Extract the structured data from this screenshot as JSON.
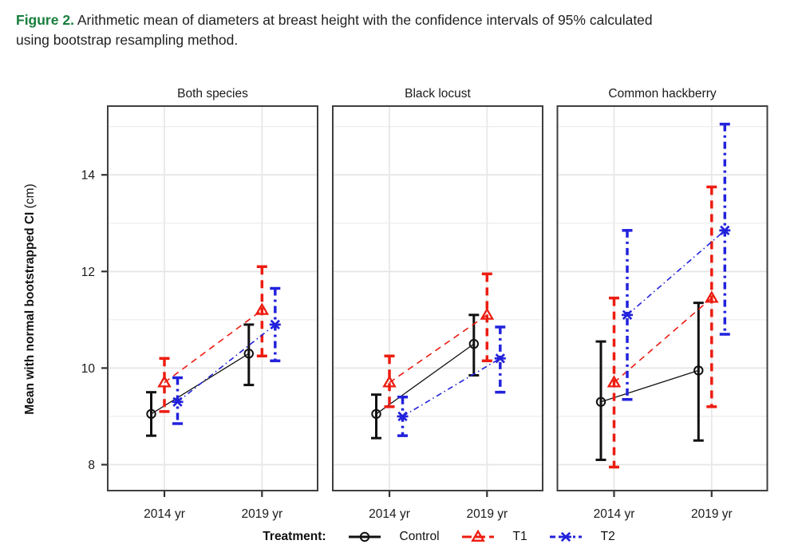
{
  "caption": {
    "label": "Figure 2.",
    "label_color": "#177e3c",
    "line1": "Arithmetic mean of diameters at breast height with the confidence intervals of 95% calculated",
    "line2": "using bootstrap resampling method."
  },
  "chart_data": {
    "type": "line",
    "description": "Dot-and-error-bar plot, three facet panels, means with 95% bootstrap CI",
    "panels": [
      "Both species",
      "Black locust",
      "Common hackberry"
    ],
    "x_categories": [
      "2014 yr",
      "2019 yr"
    ],
    "ylabel_bold": "Mean with normal bootstrapped CI",
    "ylabel_unit": "(cm)",
    "yticks": [
      8,
      10,
      12,
      14
    ],
    "ygrid_lines": [
      8,
      9,
      10,
      11,
      12,
      13,
      14,
      15
    ],
    "ylim": [
      7.45,
      15.45
    ],
    "grid": "on",
    "legend_title": "Treatment:",
    "legend_position": "bottom",
    "colors": {
      "control": "#111111",
      "t1": "#ed1c11",
      "t2": "#2222dd",
      "grid": "#e8e8e8",
      "panel_border": "#3f3f3f"
    },
    "series": [
      {
        "name": "Control",
        "color": "#111111",
        "marker": "circle",
        "linestyle": "solid",
        "panels": [
          {
            "panel": "Both species",
            "points": [
              {
                "x": "2014 yr",
                "mean": 9.05,
                "lo": 8.6,
                "hi": 9.5
              },
              {
                "x": "2019 yr",
                "mean": 10.3,
                "lo": 9.65,
                "hi": 10.9
              }
            ]
          },
          {
            "panel": "Black locust",
            "points": [
              {
                "x": "2014 yr",
                "mean": 9.05,
                "lo": 8.55,
                "hi": 9.45
              },
              {
                "x": "2019 yr",
                "mean": 10.5,
                "lo": 9.85,
                "hi": 11.1
              }
            ]
          },
          {
            "panel": "Common hackberry",
            "points": [
              {
                "x": "2014 yr",
                "mean": 9.3,
                "lo": 8.1,
                "hi": 10.55
              },
              {
                "x": "2019 yr",
                "mean": 9.95,
                "lo": 8.5,
                "hi": 11.35
              }
            ]
          }
        ]
      },
      {
        "name": "T1",
        "color": "#ed1c11",
        "marker": "triangle",
        "linestyle": "dashed",
        "panels": [
          {
            "panel": "Both species",
            "points": [
              {
                "x": "2014 yr",
                "mean": 9.7,
                "lo": 9.1,
                "hi": 10.2
              },
              {
                "x": "2019 yr",
                "mean": 11.2,
                "lo": 10.25,
                "hi": 12.1
              }
            ]
          },
          {
            "panel": "Black locust",
            "points": [
              {
                "x": "2014 yr",
                "mean": 9.7,
                "lo": 9.2,
                "hi": 10.25
              },
              {
                "x": "2019 yr",
                "mean": 11.1,
                "lo": 10.15,
                "hi": 11.95
              }
            ]
          },
          {
            "panel": "Common hackberry",
            "points": [
              {
                "x": "2014 yr",
                "mean": 9.7,
                "lo": 7.95,
                "hi": 11.45
              },
              {
                "x": "2019 yr",
                "mean": 11.45,
                "lo": 9.2,
                "hi": 13.75
              }
            ]
          }
        ]
      },
      {
        "name": "T2",
        "color": "#2222dd",
        "marker": "x",
        "linestyle": "dashdot",
        "panels": [
          {
            "panel": "Both species",
            "points": [
              {
                "x": "2014 yr",
                "mean": 9.3,
                "lo": 8.85,
                "hi": 9.8
              },
              {
                "x": "2019 yr",
                "mean": 10.9,
                "lo": 10.15,
                "hi": 11.65
              }
            ]
          },
          {
            "panel": "Black locust",
            "points": [
              {
                "x": "2014 yr",
                "mean": 9.0,
                "lo": 8.6,
                "hi": 9.4
              },
              {
                "x": "2019 yr",
                "mean": 10.2,
                "lo": 9.5,
                "hi": 10.85
              }
            ]
          },
          {
            "panel": "Common hackberry",
            "points": [
              {
                "x": "2014 yr",
                "mean": 11.1,
                "lo": 9.35,
                "hi": 12.85
              },
              {
                "x": "2019 yr",
                "mean": 12.85,
                "lo": 10.7,
                "hi": 15.05
              }
            ]
          }
        ]
      }
    ]
  }
}
